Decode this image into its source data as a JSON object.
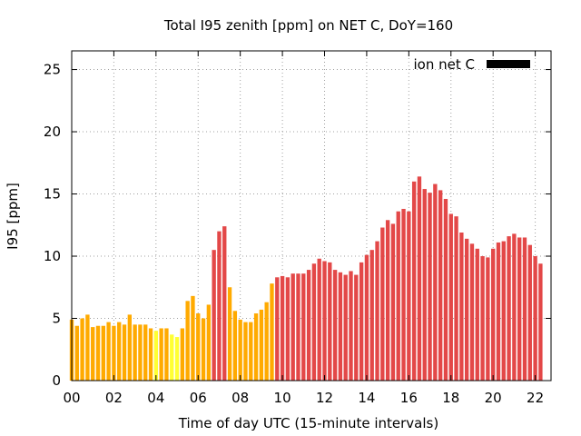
{
  "chart_data": {
    "type": "bar",
    "title": "Total I95 zenith [ppm] on NET C, DoY=160",
    "xlabel": "Time of day UTC (15-minute intervals)",
    "ylabel": "I95 [ppm]",
    "x_range": [
      0,
      22.75
    ],
    "x_step_hours": 0.25,
    "ylim": [
      0,
      26.5
    ],
    "x_tick_labels": [
      "00",
      "02",
      "04",
      "06",
      "08",
      "10",
      "12",
      "14",
      "16",
      "18",
      "20",
      "22"
    ],
    "x_tick_values": [
      0,
      2,
      4,
      6,
      8,
      10,
      12,
      14,
      16,
      18,
      20,
      22
    ],
    "y_tick_labels": [
      "0",
      "5",
      "10",
      "15",
      "20",
      "25"
    ],
    "y_tick_values": [
      0,
      5,
      10,
      15,
      20,
      25
    ],
    "grid": true,
    "legend": {
      "label": "ion net C",
      "placement": "top-right",
      "swatch_color": "#000000"
    },
    "color_scale": [
      {
        "max": 4.0,
        "color": "#ffff33"
      },
      {
        "max": 8.0,
        "color": "#ffaa00"
      },
      {
        "max": 100,
        "color": "#e34848"
      }
    ],
    "series": [
      {
        "values": [
          4.9,
          4.4,
          5.0,
          5.3,
          4.3,
          4.4,
          4.4,
          4.7,
          4.4,
          4.7,
          4.5,
          5.3,
          4.5,
          4.5,
          4.5,
          4.2,
          4.0,
          4.2,
          4.2,
          3.7,
          3.5,
          4.2,
          6.4,
          6.8,
          5.4,
          5.0,
          6.1,
          10.5,
          12.0,
          12.4,
          7.5,
          5.6,
          4.9,
          4.7,
          4.7,
          5.4,
          5.7,
          6.3,
          7.8,
          8.3,
          8.4,
          8.3,
          8.6,
          8.6,
          8.6,
          8.9,
          9.4,
          9.8,
          9.6,
          9.5,
          8.9,
          8.7,
          8.5,
          8.8,
          8.5,
          9.5,
          10.1,
          10.5,
          11.2,
          12.3,
          12.9,
          12.6,
          13.6,
          13.8,
          13.6,
          16.0,
          16.4,
          15.4,
          15.1,
          15.8,
          15.3,
          14.6,
          13.4,
          13.2,
          11.9,
          11.4,
          11.0,
          10.6,
          10.0,
          9.9,
          10.6,
          11.1,
          11.2,
          11.6,
          11.8,
          11.5,
          11.5,
          10.9,
          10.0,
          9.4
        ]
      }
    ]
  }
}
